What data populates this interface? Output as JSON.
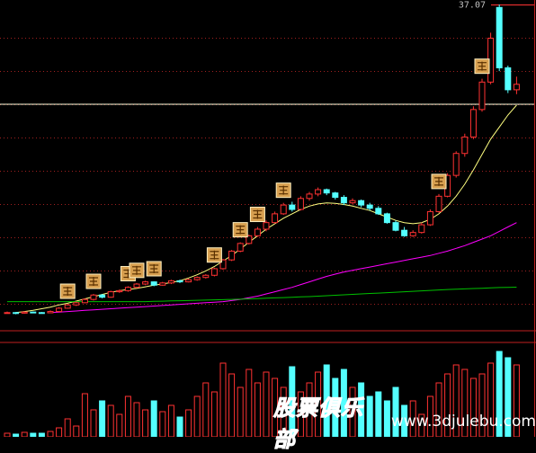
{
  "chart_data": [
    {
      "type": "candlestick",
      "high_marker": 37.07,
      "ylim": [
        8,
        37.07
      ],
      "gridlines": [
        34.04,
        31.01,
        27.98,
        24.95,
        21.92,
        18.89,
        15.86,
        12.83,
        9.8
      ],
      "hline": 27.98,
      "up_color": "#ff3232",
      "down_color": "#54ffff",
      "open": [
        8.95,
        9.0,
        8.95,
        9.05,
        9.0,
        8.98,
        9.1,
        9.4,
        9.7,
        9.9,
        10.2,
        10.6,
        10.4,
        10.9,
        11.0,
        11.3,
        11.6,
        11.8,
        11.5,
        11.7,
        11.9,
        11.8,
        12.0,
        12.2,
        12.4,
        13.0,
        13.8,
        14.6,
        15.3,
        16.0,
        16.6,
        17.2,
        18.0,
        18.8,
        18.4,
        19.4,
        19.8,
        20.2,
        19.9,
        19.5,
        19.0,
        19.2,
        18.8,
        18.5,
        18.0,
        17.2,
        16.5,
        16.0,
        16.3,
        17.0,
        18.2,
        19.6,
        21.5,
        23.5,
        25.0,
        27.5,
        30.0,
        36.8,
        31.3,
        29.3
      ],
      "high": [
        9.1,
        9.05,
        9.1,
        9.1,
        9.05,
        9.2,
        9.5,
        9.8,
        10.0,
        10.3,
        10.7,
        10.7,
        11.0,
        11.1,
        11.4,
        11.7,
        11.9,
        11.85,
        11.8,
        12.0,
        12.0,
        12.1,
        12.3,
        12.5,
        13.1,
        13.9,
        14.7,
        15.4,
        16.1,
        16.8,
        17.4,
        18.2,
        19.0,
        19.1,
        19.6,
        20.0,
        20.4,
        20.3,
        20.0,
        19.7,
        19.4,
        19.3,
        19.0,
        18.7,
        18.1,
        17.4,
        16.8,
        16.5,
        17.2,
        18.4,
        19.8,
        21.7,
        23.7,
        25.3,
        27.8,
        30.3,
        34.5,
        37.07,
        31.5,
        30.5
      ],
      "low": [
        8.9,
        8.85,
        8.9,
        8.95,
        8.9,
        8.95,
        9.05,
        9.35,
        9.6,
        9.85,
        10.1,
        10.3,
        10.35,
        10.8,
        10.9,
        11.2,
        11.5,
        11.4,
        11.45,
        11.6,
        11.7,
        11.75,
        11.9,
        12.1,
        12.3,
        12.9,
        13.7,
        14.5,
        15.2,
        15.9,
        16.4,
        17.1,
        17.9,
        18.2,
        18.3,
        19.2,
        19.6,
        19.7,
        19.3,
        18.8,
        18.9,
        18.6,
        18.3,
        17.9,
        17.1,
        16.4,
        15.9,
        15.9,
        16.2,
        16.9,
        18.1,
        19.5,
        21.3,
        23.2,
        24.8,
        27.3,
        29.8,
        31.0,
        29.0,
        28.9
      ],
      "close": [
        9.0,
        8.95,
        9.05,
        9.0,
        8.98,
        9.1,
        9.4,
        9.7,
        9.9,
        10.2,
        10.6,
        10.4,
        10.9,
        11.0,
        11.3,
        11.6,
        11.8,
        11.5,
        11.7,
        11.9,
        11.8,
        12.0,
        12.2,
        12.4,
        13.0,
        13.8,
        14.6,
        15.3,
        16.0,
        16.6,
        17.2,
        18.0,
        18.8,
        18.4,
        19.4,
        19.8,
        20.2,
        19.9,
        19.5,
        19.0,
        19.2,
        18.8,
        18.5,
        18.0,
        17.2,
        16.5,
        16.0,
        16.3,
        17.0,
        18.2,
        19.6,
        21.5,
        23.5,
        25.0,
        27.5,
        30.0,
        34.0,
        31.3,
        29.3,
        29.8
      ],
      "signal_candles": [
        7,
        10,
        14,
        15,
        17,
        24,
        27,
        29,
        32,
        50,
        55
      ],
      "ma_lines": [
        {
          "color": "#ffff80",
          "values": [
            null,
            9.0,
            9.1,
            9.2,
            9.35,
            9.5,
            9.7,
            9.85,
            10.05,
            10.25,
            10.45,
            10.65,
            10.85,
            11.0,
            11.1,
            11.2,
            11.35,
            11.5,
            11.6,
            11.75,
            11.9,
            12.15,
            12.45,
            12.8,
            13.2,
            13.7,
            14.2,
            14.8,
            15.4,
            16.0,
            16.6,
            17.1,
            17.6,
            18.0,
            18.4,
            18.7,
            18.9,
            19.0,
            18.95,
            18.85,
            18.7,
            18.5,
            18.3,
            18.0,
            17.7,
            17.4,
            17.2,
            17.1,
            17.2,
            17.5,
            18.0,
            18.7,
            19.6,
            20.7,
            22.0,
            23.4,
            24.8,
            25.9,
            27.0,
            27.9
          ]
        },
        {
          "color": "#ff00ff",
          "values": [
            null,
            null,
            null,
            null,
            null,
            9.0,
            9.05,
            9.1,
            9.15,
            9.2,
            9.25,
            9.3,
            9.35,
            9.4,
            9.45,
            9.5,
            9.55,
            9.6,
            9.65,
            9.7,
            9.75,
            9.8,
            9.85,
            9.9,
            9.95,
            10.0,
            10.1,
            10.2,
            10.35,
            10.5,
            10.7,
            10.9,
            11.1,
            11.3,
            11.55,
            11.8,
            12.05,
            12.3,
            12.5,
            12.7,
            12.85,
            13.0,
            13.15,
            13.3,
            13.45,
            13.6,
            13.75,
            13.9,
            14.05,
            14.2,
            14.4,
            14.6,
            14.85,
            15.1,
            15.4,
            15.7,
            16.0,
            16.4,
            16.8,
            17.2
          ]
        },
        {
          "color": "#00c000",
          "values": [
            10.0,
            10.0,
            10.0,
            10.0,
            10.0,
            10.0,
            10.0,
            10.0,
            10.0,
            10.0,
            10.0,
            10.0,
            10.0,
            10.0,
            10.0,
            10.0,
            10.0,
            10.02,
            10.04,
            10.06,
            10.08,
            10.1,
            10.12,
            10.14,
            10.16,
            10.18,
            10.2,
            10.22,
            10.25,
            10.28,
            10.31,
            10.34,
            10.37,
            10.4,
            10.43,
            10.46,
            10.5,
            10.54,
            10.58,
            10.62,
            10.66,
            10.7,
            10.74,
            10.78,
            10.82,
            10.86,
            10.9,
            10.94,
            10.98,
            11.02,
            11.06,
            11.1,
            11.13,
            11.16,
            11.19,
            11.22,
            11.25,
            11.28,
            11.3,
            11.32
          ]
        }
      ]
    },
    {
      "type": "bar",
      "ylim": [
        0,
        100
      ],
      "values": [
        4,
        3,
        5,
        4,
        4,
        6,
        10,
        20,
        12,
        48,
        30,
        40,
        35,
        25,
        45,
        38,
        30,
        40,
        28,
        35,
        22,
        30,
        45,
        60,
        50,
        82,
        70,
        55,
        75,
        60,
        72,
        65,
        55,
        78,
        50,
        60,
        72,
        80,
        65,
        75,
        55,
        60,
        45,
        50,
        40,
        55,
        35,
        40,
        25,
        45,
        60,
        70,
        80,
        75,
        65,
        70,
        82,
        95,
        88,
        80
      ]
    }
  ],
  "watermark": {
    "title": "股票俱乐部",
    "url": "www.3djulebu.com"
  }
}
